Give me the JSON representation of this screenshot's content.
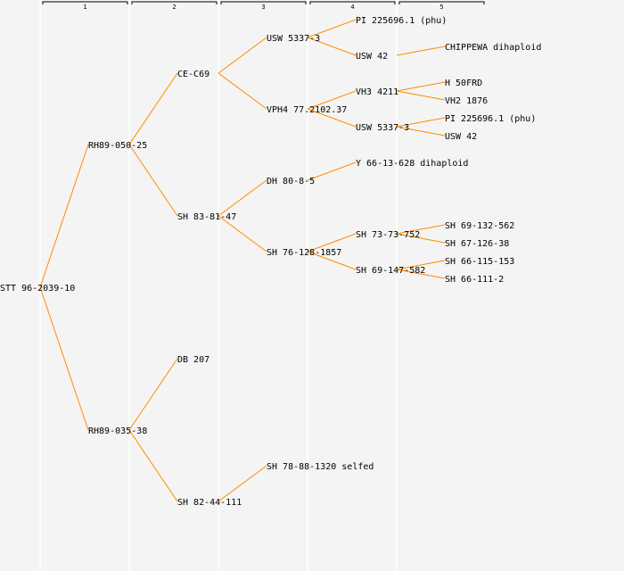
{
  "generation_headers": [
    "1",
    "2",
    "3",
    "4",
    "5"
  ],
  "colors": {
    "background": "#f4f4f4",
    "edge": "#ff8c00",
    "separator": "#ffffff",
    "text": "#000000"
  },
  "pedigree": {
    "label": "STT 96-2039-10",
    "parents": [
      {
        "label": "RH89-050-25",
        "parents": [
          {
            "label": "CE-C69",
            "parents": [
              {
                "label": "USW 5337-3",
                "parents": [
                  {
                    "label": "PI 225696.1 (phu)",
                    "parents": []
                  },
                  {
                    "label": "USW 42",
                    "parents": [
                      {
                        "label": "CHIPPEWA dihaploid",
                        "parents": []
                      },
                      null
                    ]
                  }
                ]
              },
              {
                "label": "VPH4 77.2102.37",
                "parents": [
                  {
                    "label": "VH3 4211",
                    "parents": [
                      {
                        "label": "H 50FRD",
                        "parents": []
                      },
                      {
                        "label": "VH2 1876",
                        "parents": []
                      }
                    ]
                  },
                  {
                    "label": "USW 5337-3",
                    "parents": [
                      {
                        "label": "PI 225696.1 (phu)",
                        "parents": []
                      },
                      {
                        "label": "USW 42",
                        "parents": []
                      }
                    ]
                  }
                ]
              }
            ]
          },
          {
            "label": "SH 83-81-47",
            "parents": [
              {
                "label": "DH 80-8-5",
                "parents": [
                  {
                    "label": "Y 66-13-628 dihaploid",
                    "parents": []
                  },
                  null
                ]
              },
              {
                "label": "SH 76-128-1857",
                "parents": [
                  {
                    "label": "SH 73-73-752",
                    "parents": [
                      {
                        "label": "SH 69-132-562",
                        "parents": []
                      },
                      {
                        "label": "SH 67-126-38",
                        "parents": []
                      }
                    ]
                  },
                  {
                    "label": "SH 69-147-582",
                    "parents": [
                      {
                        "label": "SH 66-115-153",
                        "parents": []
                      },
                      {
                        "label": "SH 66-111-2",
                        "parents": []
                      }
                    ]
                  }
                ]
              }
            ]
          }
        ]
      },
      {
        "label": "RH89-035-38",
        "parents": [
          {
            "label": "DB 207",
            "parents": []
          },
          {
            "label": "SH 82-44-111",
            "parents": [
              {
                "label": "SH 78-88-1320 selfed",
                "parents": []
              },
              null
            ]
          }
        ]
      }
    ]
  }
}
